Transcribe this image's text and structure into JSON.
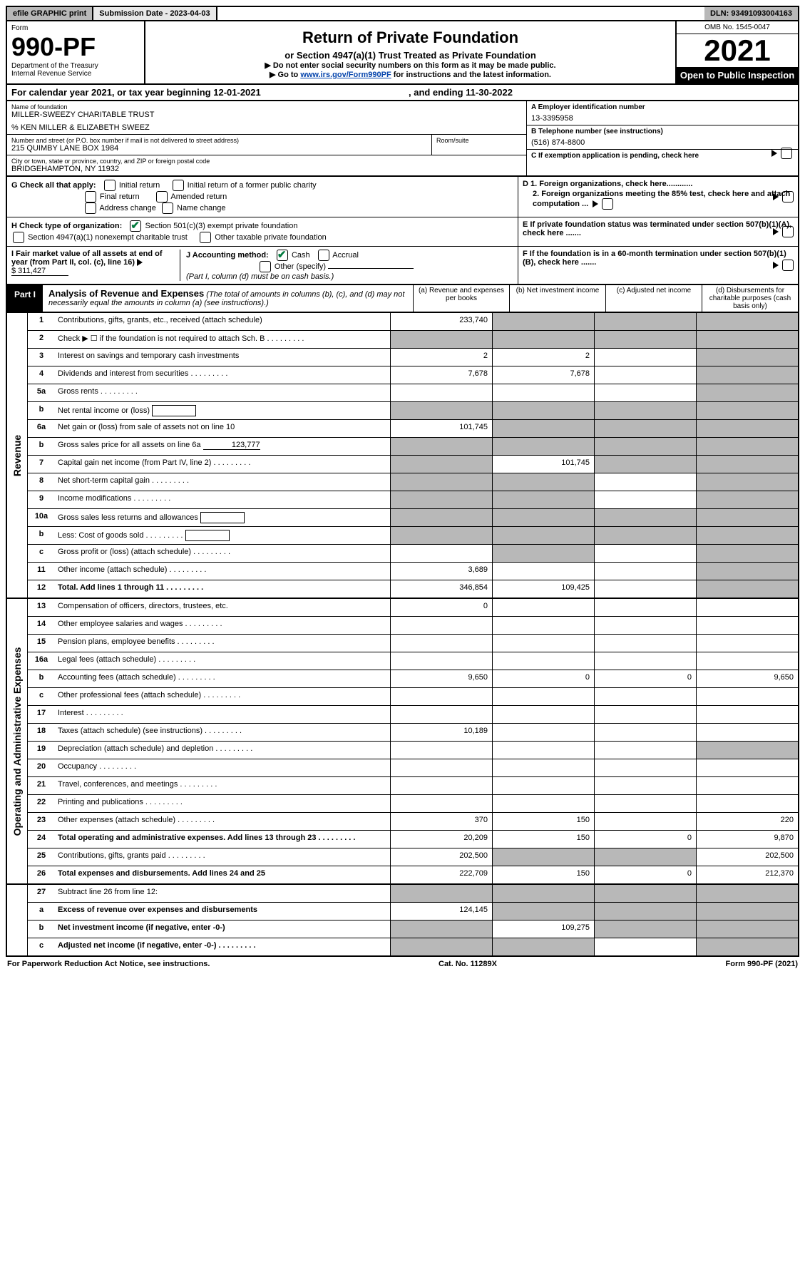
{
  "top": {
    "efile": "efile GRAPHIC print",
    "submission": "Submission Date - 2023-04-03",
    "dln": "DLN: 93491093004163"
  },
  "header": {
    "form_word": "Form",
    "form_num": "990-PF",
    "dept": "Department of the Treasury",
    "irs": "Internal Revenue Service",
    "title": "Return of Private Foundation",
    "subtitle": "or Section 4947(a)(1) Trust Treated as Private Foundation",
    "note1": "▶ Do not enter social security numbers on this form as it may be made public.",
    "note2_pre": "▶ Go to ",
    "note2_link": "www.irs.gov/Form990PF",
    "note2_post": " for instructions and the latest information.",
    "omb": "OMB No. 1545-0047",
    "year": "2021",
    "open": "Open to Public Inspection"
  },
  "cal": {
    "text_pre": "For calendar year 2021, or tax year beginning ",
    "begin": "12-01-2021",
    "mid": ", and ending ",
    "end": "11-30-2022"
  },
  "name": {
    "label": "Name of foundation",
    "val": "MILLER-SWEEZY CHARITABLE TRUST",
    "care": "% KEN MILLER & ELIZABETH SWEEZ"
  },
  "addr": {
    "label": "Number and street (or P.O. box number if mail is not delivered to street address)",
    "val": "215 QUIMBY LANE BOX 1984",
    "room_label": "Room/suite"
  },
  "city": {
    "label": "City or town, state or province, country, and ZIP or foreign postal code",
    "val": "BRIDGEHAMPTON, NY  11932"
  },
  "A": {
    "label": "A Employer identification number",
    "val": "13-3395958"
  },
  "B": {
    "label": "B Telephone number (see instructions)",
    "val": "(516) 874-8800"
  },
  "C": {
    "label": "C If exemption application is pending, check here"
  },
  "G": {
    "label": "G Check all that apply:",
    "opts": [
      "Initial return",
      "Final return",
      "Address change",
      "Initial return of a former public charity",
      "Amended return",
      "Name change"
    ]
  },
  "D": {
    "l1": "D 1. Foreign organizations, check here............",
    "l2": "2. Foreign organizations meeting the 85% test, check here and attach computation ..."
  },
  "H": {
    "label": "H Check type of organization:",
    "o1": "Section 501(c)(3) exempt private foundation",
    "o2": "Section 4947(a)(1) nonexempt charitable trust",
    "o3": "Other taxable private foundation"
  },
  "E": {
    "label": "E If private foundation status was terminated under section 507(b)(1)(A), check here ......."
  },
  "I": {
    "label": "I Fair market value of all assets at end of year (from Part II, col. (c), line 16)",
    "val": "$  311,427"
  },
  "J": {
    "label": "J Accounting method:",
    "o1": "Cash",
    "o2": "Accrual",
    "o3": "Other (specify)",
    "note": "(Part I, column (d) must be on cash basis.)"
  },
  "F": {
    "label": "F If the foundation is in a 60-month termination under section 507(b)(1)(B), check here ......."
  },
  "part1": {
    "label": "Part I",
    "title": "Analysis of Revenue and Expenses",
    "note": "(The total of amounts in columns (b), (c), and (d) may not necessarily equal the amounts in column (a) (see instructions).)",
    "cols": {
      "a": "(a)   Revenue and expenses per books",
      "b": "(b)   Net investment income",
      "c": "(c)   Adjusted net income",
      "d": "(d)   Disbursements for charitable purposes (cash basis only)"
    }
  },
  "side": {
    "rev": "Revenue",
    "exp": "Operating and Administrative Expenses"
  },
  "rows": {
    "r1": {
      "n": "1",
      "d": "Contributions, gifts, grants, etc., received (attach schedule)",
      "a": "233,740",
      "ag": false,
      "bg": true,
      "cg": true,
      "dg": true
    },
    "r2": {
      "n": "2",
      "d": "Check ▶ ☐ if the foundation is not required to attach Sch. B",
      "dots": true,
      "ag": true,
      "bg": true,
      "cg": true,
      "dg": true
    },
    "r3": {
      "n": "3",
      "d": "Interest on savings and temporary cash investments",
      "a": "2",
      "b": "2",
      "dg": true
    },
    "r4": {
      "n": "4",
      "d": "Dividends and interest from securities",
      "dots": true,
      "a": "7,678",
      "b": "7,678",
      "dg": true
    },
    "r5a": {
      "n": "5a",
      "d": "Gross rents",
      "dots": true,
      "dg": true
    },
    "r5b": {
      "n": "b",
      "d": "Net rental income or (loss)",
      "box": true,
      "ag": true,
      "bg": true,
      "cg": true,
      "dg": true
    },
    "r6a": {
      "n": "6a",
      "d": "Net gain or (loss) from sale of assets not on line 10",
      "a": "101,745",
      "bg": true,
      "cg": true,
      "dg": true
    },
    "r6b": {
      "n": "b",
      "d": "Gross sales price for all assets on line 6a",
      "u": "123,777",
      "ag": true,
      "bg": true,
      "cg": true,
      "dg": true
    },
    "r7": {
      "n": "7",
      "d": "Capital gain net income (from Part IV, line 2)",
      "dots": true,
      "ag": true,
      "b": "101,745",
      "cg": true,
      "dg": true
    },
    "r8": {
      "n": "8",
      "d": "Net short-term capital gain",
      "dots": true,
      "ag": true,
      "bg": true,
      "dg": true
    },
    "r9": {
      "n": "9",
      "d": "Income modifications",
      "dots": true,
      "ag": true,
      "bg": true,
      "dg": true
    },
    "r10a": {
      "n": "10a",
      "d": "Gross sales less returns and allowances",
      "box": true,
      "ag": true,
      "bg": true,
      "cg": true,
      "dg": true
    },
    "r10b": {
      "n": "b",
      "d": "Less: Cost of goods sold",
      "dots": true,
      "box": true,
      "ag": true,
      "bg": true,
      "cg": true,
      "dg": true
    },
    "r10c": {
      "n": "c",
      "d": "Gross profit or (loss) (attach schedule)",
      "dots": true,
      "bg": true,
      "dg": true
    },
    "r11": {
      "n": "11",
      "d": "Other income (attach schedule)",
      "dots": true,
      "a": "3,689",
      "dg": true
    },
    "r12": {
      "n": "12",
      "d": "Total. Add lines 1 through 11",
      "dots": true,
      "bold": true,
      "a": "346,854",
      "b": "109,425",
      "dg": true
    },
    "r13": {
      "n": "13",
      "d": "Compensation of officers, directors, trustees, etc.",
      "a": "0"
    },
    "r14": {
      "n": "14",
      "d": "Other employee salaries and wages",
      "dots": true
    },
    "r15": {
      "n": "15",
      "d": "Pension plans, employee benefits",
      "dots": true
    },
    "r16a": {
      "n": "16a",
      "d": "Legal fees (attach schedule)",
      "dots": true
    },
    "r16b": {
      "n": "b",
      "d": "Accounting fees (attach schedule)",
      "dots": true,
      "a": "9,650",
      "b": "0",
      "c": "0",
      "dd": "9,650"
    },
    "r16c": {
      "n": "c",
      "d": "Other professional fees (attach schedule)",
      "dots": true
    },
    "r17": {
      "n": "17",
      "d": "Interest",
      "dots": true
    },
    "r18": {
      "n": "18",
      "d": "Taxes (attach schedule) (see instructions)",
      "dots": true,
      "a": "10,189"
    },
    "r19": {
      "n": "19",
      "d": "Depreciation (attach schedule) and depletion",
      "dots": true,
      "dg": true
    },
    "r20": {
      "n": "20",
      "d": "Occupancy",
      "dots": true
    },
    "r21": {
      "n": "21",
      "d": "Travel, conferences, and meetings",
      "dots": true
    },
    "r22": {
      "n": "22",
      "d": "Printing and publications",
      "dots": true
    },
    "r23": {
      "n": "23",
      "d": "Other expenses (attach schedule)",
      "dots": true,
      "a": "370",
      "b": "150",
      "dd": "220"
    },
    "r24": {
      "n": "24",
      "d": "Total operating and administrative expenses. Add lines 13 through 23",
      "dots": true,
      "bold": true,
      "a": "20,209",
      "b": "150",
      "c": "0",
      "dd": "9,870"
    },
    "r25": {
      "n": "25",
      "d": "Contributions, gifts, grants paid",
      "dots": true,
      "a": "202,500",
      "bg": true,
      "cg": true,
      "dd": "202,500"
    },
    "r26": {
      "n": "26",
      "d": "Total expenses and disbursements. Add lines 24 and 25",
      "bold": true,
      "a": "222,709",
      "b": "150",
      "c": "0",
      "dd": "212,370"
    },
    "r27": {
      "n": "27",
      "d": "Subtract line 26 from line 12:",
      "ag": true,
      "bg": true,
      "cg": true,
      "dg": true
    },
    "r27a": {
      "n": "a",
      "d": "Excess of revenue over expenses and disbursements",
      "bold": true,
      "a": "124,145",
      "bg": true,
      "cg": true,
      "dg": true
    },
    "r27b": {
      "n": "b",
      "d": "Net investment income (if negative, enter -0-)",
      "bold": true,
      "ag": true,
      "b": "109,275",
      "cg": true,
      "dg": true
    },
    "r27c": {
      "n": "c",
      "d": "Adjusted net income (if negative, enter -0-)",
      "dots": true,
      "bold": true,
      "ag": true,
      "bg": true,
      "dg": true
    }
  },
  "footer": {
    "left": "For Paperwork Reduction Act Notice, see instructions.",
    "mid": "Cat. No. 11289X",
    "right": "Form 990-PF (2021)"
  }
}
